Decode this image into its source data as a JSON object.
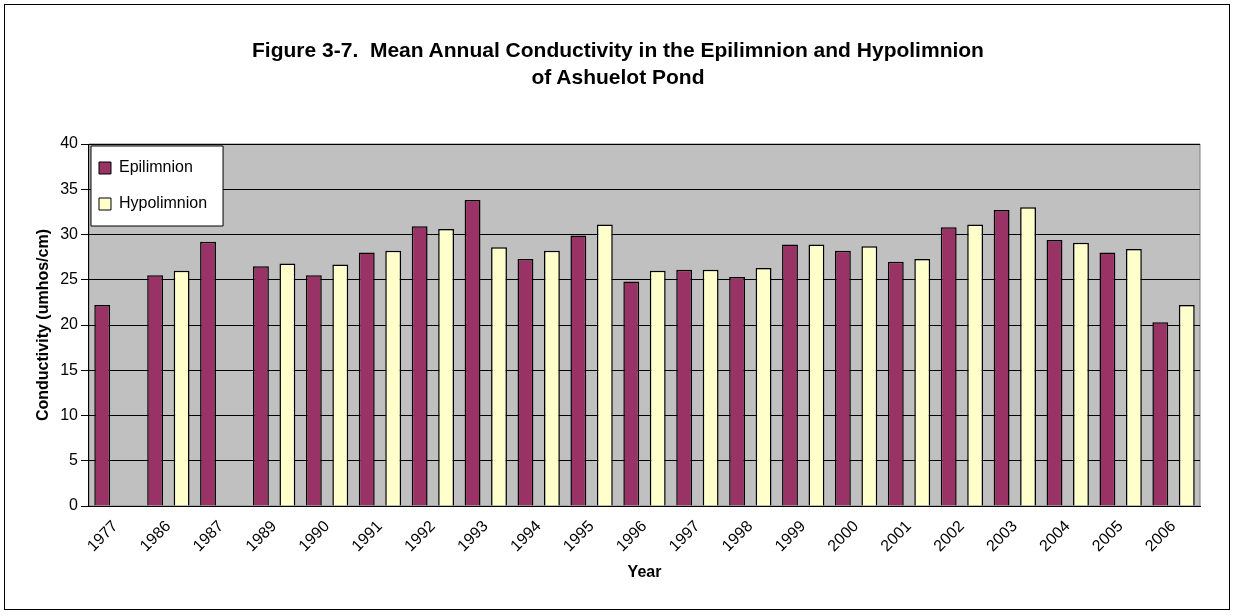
{
  "chart_data": {
    "type": "bar",
    "title": "Figure 3-7.  Mean Annual Conductivity in the Epilimnion and Hypolimnion\nof Ashuelot Pond",
    "xlabel": "Year",
    "ylabel": "Conductivity (umhos/cm)",
    "categories": [
      "1977",
      "1986",
      "1987",
      "1989",
      "1990",
      "1991",
      "1992",
      "1993",
      "1994",
      "1995",
      "1996",
      "1997",
      "1998",
      "1999",
      "2000",
      "2001",
      "2002",
      "2003",
      "2004",
      "2005",
      "2006"
    ],
    "series": [
      {
        "name": "Epilimnion",
        "color": "#993366",
        "values": [
          22.2,
          25.5,
          29.2,
          26.5,
          25.5,
          28,
          30.9,
          33.8,
          27.3,
          29.9,
          24.8,
          26.1,
          25.3,
          28.9,
          28.2,
          27,
          30.8,
          32.7,
          29.4,
          28,
          20.3
        ]
      },
      {
        "name": "Hypolimnion",
        "color": "#ffffcc",
        "values": [
          null,
          26,
          null,
          26.8,
          26.7,
          28.2,
          30.6,
          28.6,
          28.2,
          31.1,
          26,
          26.1,
          26.3,
          28.9,
          28.7,
          27.3,
          31.1,
          33,
          29.1,
          28.4,
          22.2
        ]
      }
    ],
    "ylim": [
      0,
      40
    ],
    "yticks": [
      0,
      5,
      10,
      15,
      20,
      25,
      30,
      35,
      40
    ],
    "grid": "y",
    "legend": "top left"
  }
}
